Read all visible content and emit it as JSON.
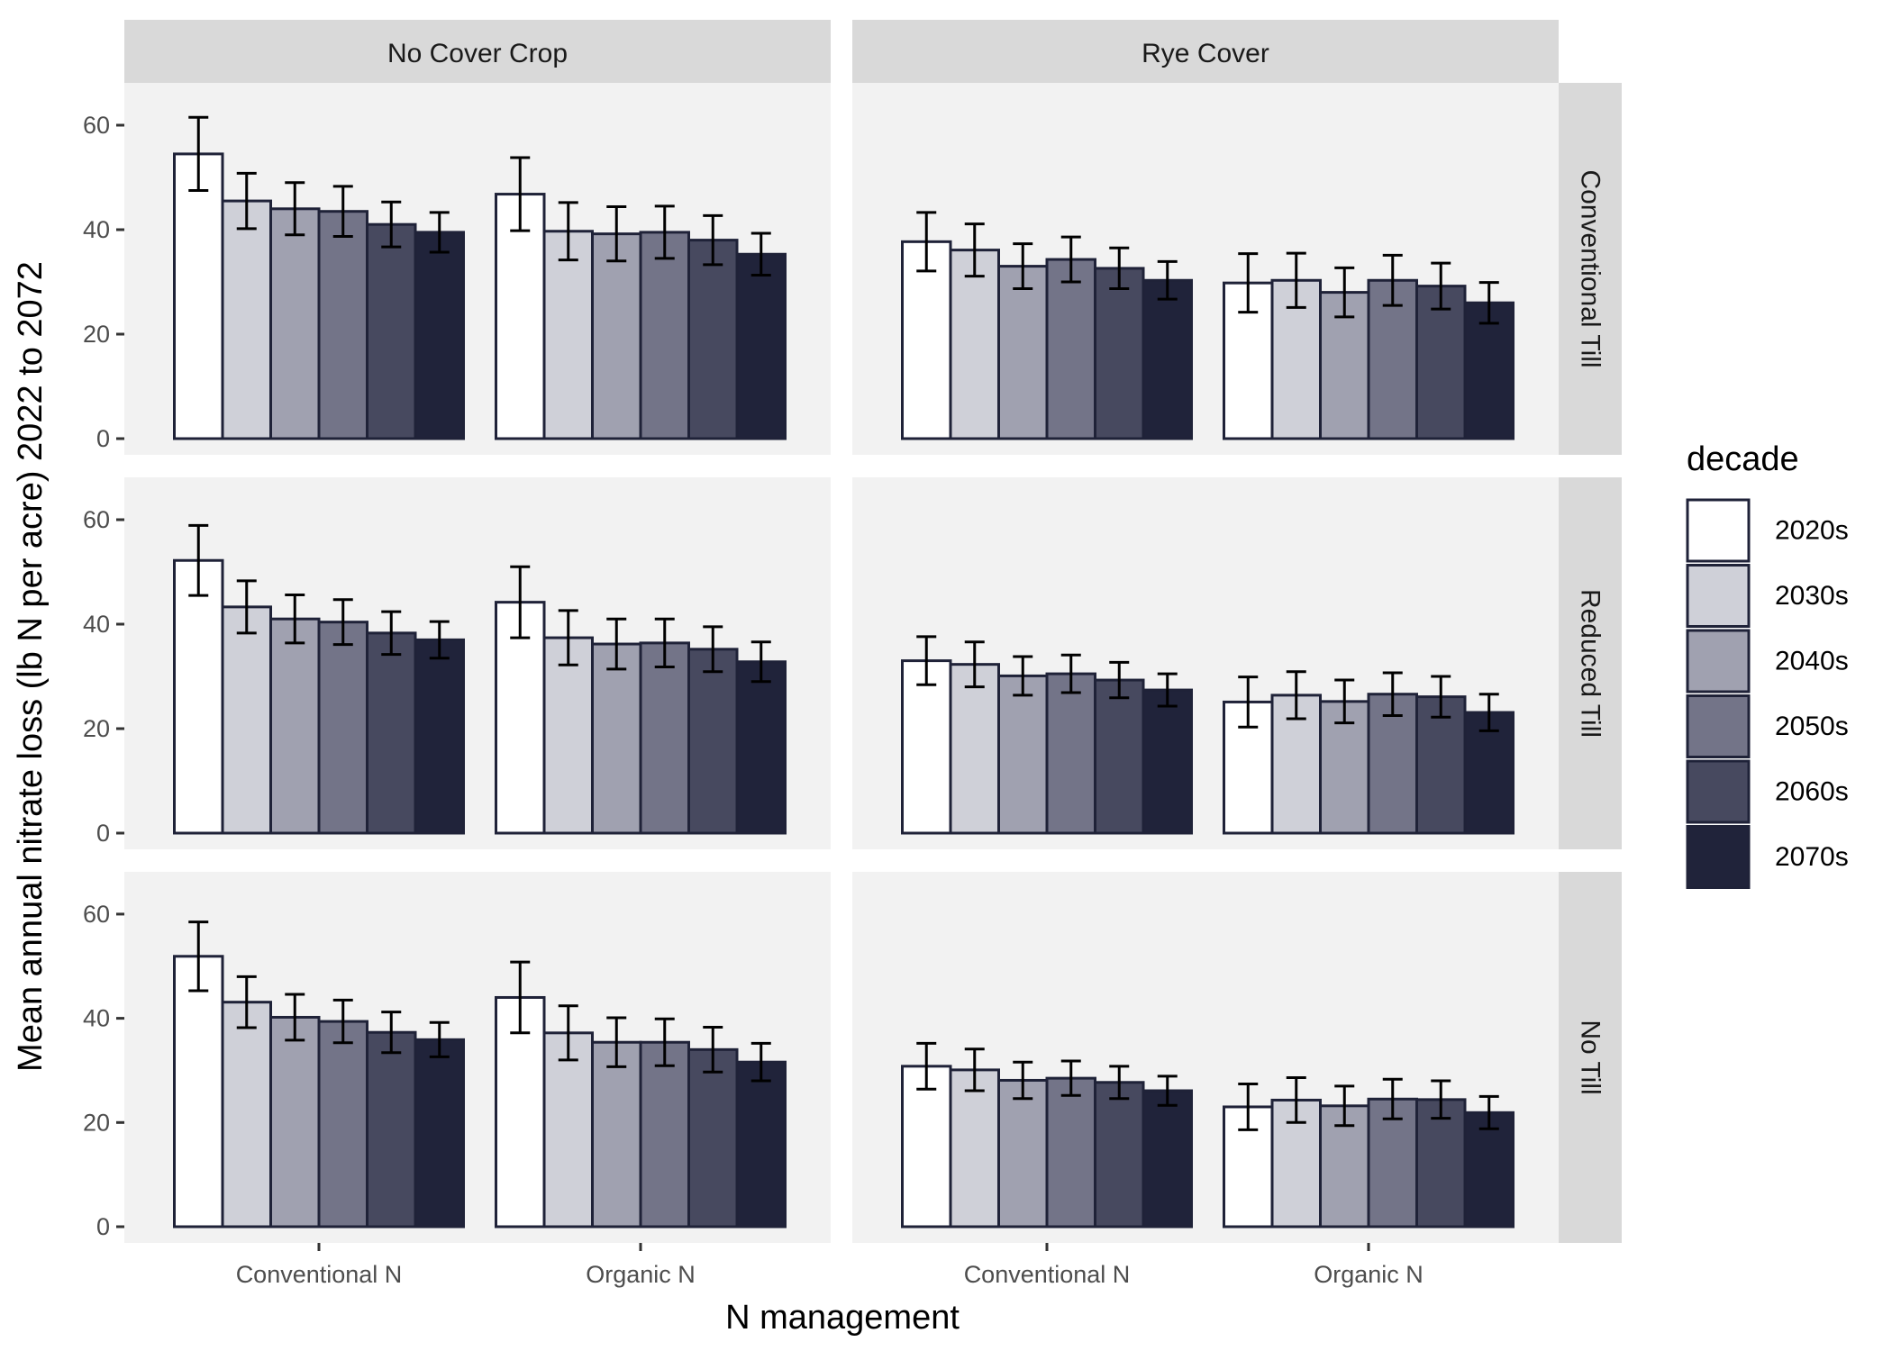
{
  "chart_data": {
    "type": "bar",
    "xlabel": "N management",
    "ylabel": "Mean annual nitrate loss (lb N per acre) 2022 to 2072",
    "ylim": [
      0,
      65
    ],
    "yticks": [
      0,
      20,
      40,
      60
    ],
    "col_facets": [
      "No Cover Crop",
      "Rye Cover"
    ],
    "row_facets": [
      "Conventional Till",
      "Reduced Till",
      "No Till"
    ],
    "categories": [
      "Conventional N",
      "Organic N"
    ],
    "legend": {
      "title": "decade",
      "placement": "right",
      "items": [
        {
          "name": "2020s",
          "color": "#ffffff"
        },
        {
          "name": "2030s",
          "color": "#cfd0d8"
        },
        {
          "name": "2040s",
          "color": "#a0a1b0"
        },
        {
          "name": "2050s",
          "color": "#737488"
        },
        {
          "name": "2060s",
          "color": "#47495f"
        },
        {
          "name": "2070s",
          "color": "#20233a"
        }
      ]
    },
    "panels": [
      {
        "row": 0,
        "col": 0,
        "values": [
          [
            54.5,
            45.5,
            44,
            43.5,
            41,
            39.5
          ],
          [
            46.8,
            39.7,
            39.2,
            39.5,
            38,
            35.3
          ]
        ],
        "errors": [
          [
            7,
            5.3,
            5,
            4.8,
            4.3,
            3.8
          ],
          [
            7,
            5.5,
            5.2,
            5,
            4.7,
            4
          ]
        ]
      },
      {
        "row": 0,
        "col": 1,
        "values": [
          [
            37.7,
            36.1,
            33,
            34.3,
            32.6,
            30.3
          ],
          [
            29.8,
            30.3,
            28,
            30.3,
            29.2,
            26
          ]
        ],
        "errors": [
          [
            5.6,
            5,
            4.3,
            4.3,
            3.9,
            3.6
          ],
          [
            5.6,
            5.2,
            4.7,
            4.8,
            4.4,
            3.9
          ]
        ]
      },
      {
        "row": 1,
        "col": 0,
        "values": [
          [
            52.2,
            43.3,
            41,
            40.4,
            38.3,
            37
          ],
          [
            44.2,
            37.4,
            36.2,
            36.4,
            35.2,
            32.8
          ]
        ],
        "errors": [
          [
            6.7,
            5,
            4.6,
            4.3,
            4.1,
            3.5
          ],
          [
            6.8,
            5.2,
            4.8,
            4.6,
            4.3,
            3.8
          ]
        ]
      },
      {
        "row": 1,
        "col": 1,
        "values": [
          [
            33,
            32.3,
            30.1,
            30.5,
            29.3,
            27.4
          ],
          [
            25.1,
            26.4,
            25.2,
            26.6,
            26.1,
            23.1
          ]
        ],
        "errors": [
          [
            4.6,
            4.3,
            3.7,
            3.6,
            3.4,
            3.1
          ],
          [
            4.8,
            4.5,
            4.1,
            4.1,
            3.9,
            3.5
          ]
        ]
      },
      {
        "row": 2,
        "col": 0,
        "values": [
          [
            51.9,
            43.1,
            40.2,
            39.4,
            37.3,
            35.9
          ],
          [
            44,
            37.2,
            35.4,
            35.4,
            34,
            31.6
          ]
        ],
        "errors": [
          [
            6.6,
            4.9,
            4.4,
            4.1,
            3.9,
            3.3
          ],
          [
            6.8,
            5.2,
            4.7,
            4.5,
            4.3,
            3.6
          ]
        ]
      },
      {
        "row": 2,
        "col": 1,
        "values": [
          [
            30.8,
            30.1,
            28.1,
            28.5,
            27.7,
            26.1
          ],
          [
            23,
            24.3,
            23.2,
            24.5,
            24.4,
            21.9
          ]
        ],
        "errors": [
          [
            4.4,
            4,
            3.5,
            3.3,
            3.1,
            2.8
          ],
          [
            4.4,
            4.3,
            3.8,
            3.8,
            3.6,
            3.1
          ]
        ]
      }
    ]
  }
}
